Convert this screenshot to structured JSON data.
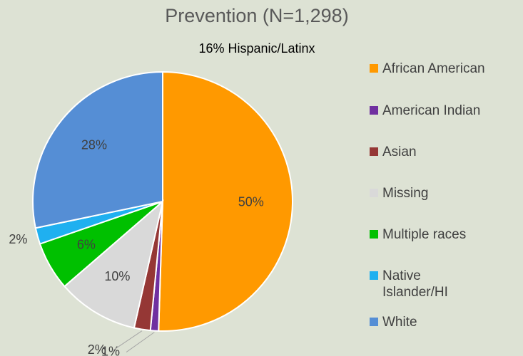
{
  "chart_data": {
    "type": "pie",
    "title": "Prevention (N=1,298)",
    "subtitle": "16% Hispanic/Latinx",
    "categories": [
      "African American",
      "American Indian",
      "Asian",
      "Missing",
      "Multiple races",
      "Native Islander/HI",
      "White"
    ],
    "values": [
      50,
      1,
      2,
      10,
      6,
      2,
      28
    ],
    "value_labels": [
      "50%",
      "1%",
      "2%",
      "10%",
      "6%",
      "2%",
      "28%"
    ],
    "colors": [
      "#ff9900",
      "#7030a0",
      "#953735",
      "#d9d9d9",
      "#00c000",
      "#1fb0f0",
      "#558ed5"
    ],
    "legend": "right"
  }
}
